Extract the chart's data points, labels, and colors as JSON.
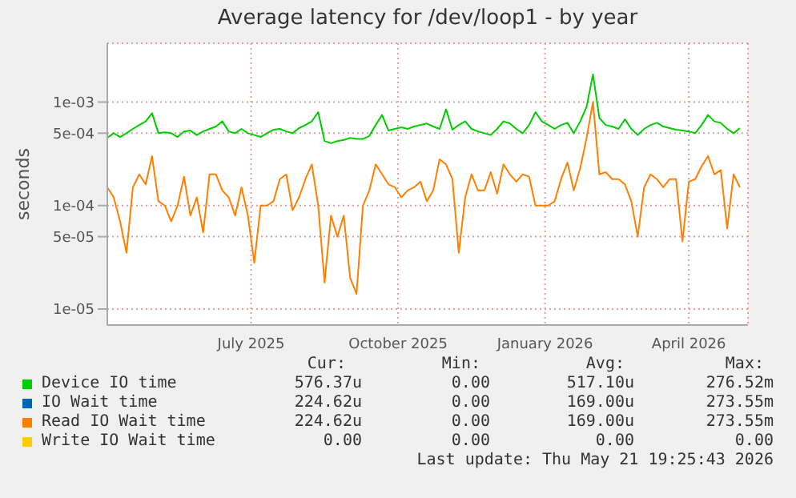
{
  "chart_data": {
    "type": "line",
    "title": "Average latency for /dev/loop1 - by year",
    "ylabel": "seconds",
    "log": "y",
    "grid": true,
    "legend": "bottom",
    "marker": "none",
    "line_style": "solid",
    "xlim": [
      "2025-04-17",
      "2026-05-23"
    ],
    "xticks": [
      {
        "value": "2025-07-16",
        "label": "July 2025"
      },
      {
        "value": "2025-10-16",
        "label": "October 2025"
      },
      {
        "value": "2026-01-16",
        "label": "January 2026"
      },
      {
        "value": "2026-04-16",
        "label": "April 2026"
      }
    ],
    "ylim": [
      7e-06,
      0.0037
    ],
    "yticks": [
      {
        "value": 1e-05,
        "label": "1e-05"
      },
      {
        "value": 5e-05,
        "label": "5e-05"
      },
      {
        "value": 0.0001,
        "label": "1e-04"
      },
      {
        "value": 0.0005,
        "label": "5e-04"
      },
      {
        "value": 0.001,
        "label": "1e-03"
      }
    ],
    "x": [
      "2025-04-17",
      "2025-04-21",
      "2025-04-25",
      "2025-04-29",
      "2025-05-03",
      "2025-05-07",
      "2025-05-11",
      "2025-05-15",
      "2025-05-19",
      "2025-05-23",
      "2025-05-27",
      "2025-05-31",
      "2025-06-04",
      "2025-06-08",
      "2025-06-12",
      "2025-06-16",
      "2025-06-20",
      "2025-06-24",
      "2025-06-28",
      "2025-07-02",
      "2025-07-06",
      "2025-07-10",
      "2025-07-14",
      "2025-07-18",
      "2025-07-22",
      "2025-07-26",
      "2025-07-30",
      "2025-08-03",
      "2025-08-07",
      "2025-08-11",
      "2025-08-15",
      "2025-08-19",
      "2025-08-23",
      "2025-08-27",
      "2025-08-31",
      "2025-09-04",
      "2025-09-08",
      "2025-09-12",
      "2025-09-16",
      "2025-09-20",
      "2025-09-24",
      "2025-09-28",
      "2025-10-02",
      "2025-10-06",
      "2025-10-10",
      "2025-10-14",
      "2025-10-18",
      "2025-10-22",
      "2025-10-26",
      "2025-10-30",
      "2025-11-03",
      "2025-11-07",
      "2025-11-11",
      "2025-11-15",
      "2025-11-19",
      "2025-11-23",
      "2025-11-27",
      "2025-12-01",
      "2025-12-05",
      "2025-12-09",
      "2025-12-13",
      "2025-12-17",
      "2025-12-21",
      "2025-12-25",
      "2025-12-29",
      "2026-01-02",
      "2026-01-06",
      "2026-01-10",
      "2026-01-14",
      "2026-01-18",
      "2026-01-22",
      "2026-01-26",
      "2026-01-30",
      "2026-02-03",
      "2026-02-07",
      "2026-02-11",
      "2026-02-15",
      "2026-02-19",
      "2026-02-23",
      "2026-02-27",
      "2026-03-03",
      "2026-03-07",
      "2026-03-11",
      "2026-03-15",
      "2026-03-19",
      "2026-03-23",
      "2026-03-27",
      "2026-03-31",
      "2026-04-04",
      "2026-04-08",
      "2026-04-12",
      "2026-04-16",
      "2026-04-20",
      "2026-04-24",
      "2026-04-28",
      "2026-05-02",
      "2026-05-06",
      "2026-05-10",
      "2026-05-14",
      "2026-05-18"
    ],
    "series": [
      {
        "name": "Device IO time",
        "color": "#00cc00",
        "values": [
          0.00045,
          0.0005,
          0.00046,
          0.0005,
          0.00055,
          0.0006,
          0.00065,
          0.00078,
          0.0005,
          0.00051,
          0.0005,
          0.00046,
          0.00052,
          0.00053,
          0.00048,
          0.00052,
          0.00055,
          0.00058,
          0.00065,
          0.00052,
          0.0005,
          0.00055,
          0.0005,
          0.00048,
          0.00046,
          0.0005,
          0.00054,
          0.00055,
          0.00052,
          0.0005,
          0.00056,
          0.0006,
          0.00065,
          0.0008,
          0.00042,
          0.0004,
          0.00042,
          0.00043,
          0.00045,
          0.00044,
          0.00044,
          0.00047,
          0.0006,
          0.00075,
          0.00053,
          0.00055,
          0.00057,
          0.00055,
          0.00058,
          0.0006,
          0.00062,
          0.00058,
          0.00055,
          0.00085,
          0.00054,
          0.0006,
          0.00065,
          0.00055,
          0.00052,
          0.0005,
          0.00048,
          0.00055,
          0.00065,
          0.00062,
          0.00055,
          0.0005,
          0.0006,
          0.0008,
          0.00065,
          0.0006,
          0.00055,
          0.0006,
          0.00063,
          0.0005,
          0.00065,
          0.0009,
          0.00185,
          0.0007,
          0.0006,
          0.00058,
          0.00055,
          0.00068,
          0.00055,
          0.00048,
          0.00055,
          0.0006,
          0.00063,
          0.00058,
          0.00056,
          0.00054,
          0.00053,
          0.00052,
          0.0005,
          0.0006,
          0.00075,
          0.00065,
          0.00063,
          0.00055,
          0.0005,
          0.00056
        ]
      },
      {
        "name": "IO Wait time",
        "color": "#0066b3",
        "values": [
          null,
          null,
          null,
          null,
          null,
          null,
          null,
          null,
          null,
          null,
          null,
          null,
          null,
          null,
          null,
          null,
          null,
          null,
          null,
          null,
          null,
          null,
          null,
          null,
          null,
          null,
          null,
          null,
          null,
          null,
          null,
          null,
          null,
          null,
          null,
          null,
          null,
          null,
          null,
          null,
          null,
          null,
          null,
          null,
          null,
          null,
          null,
          null,
          null,
          null,
          null,
          null,
          null,
          null,
          null,
          null,
          null,
          null,
          null,
          null,
          null,
          null,
          null,
          null,
          null,
          null,
          null,
          null,
          null,
          null,
          null,
          null,
          null,
          null,
          null,
          null,
          null,
          null,
          null,
          null,
          null,
          null,
          null,
          null,
          null,
          null,
          null,
          null,
          null,
          null,
          null,
          null,
          null,
          null,
          null,
          null,
          null,
          null,
          null,
          null
        ]
      },
      {
        "name": "Read IO Wait time",
        "color": "#ff8000",
        "values": [
          0.00015,
          0.00012,
          7e-05,
          3.5e-05,
          0.00015,
          0.0002,
          0.00016,
          0.0003,
          0.00011,
          0.0001,
          7e-05,
          0.0001,
          0.00019,
          8e-05,
          0.00012,
          5.5e-05,
          0.0002,
          0.0002,
          0.00014,
          0.00012,
          8e-05,
          0.00015,
          8e-05,
          2.8e-05,
          0.0001,
          0.0001,
          0.00011,
          0.00018,
          0.0002,
          9e-05,
          0.00012,
          0.00018,
          0.00025,
          0.0001,
          1.8e-05,
          8e-05,
          5e-05,
          8e-05,
          2e-05,
          1.4e-05,
          0.0001,
          0.00014,
          0.00025,
          0.0002,
          0.00016,
          0.00015,
          0.00012,
          0.00014,
          0.00015,
          0.00017,
          0.00011,
          0.00014,
          0.00028,
          0.00025,
          0.00018,
          3.5e-05,
          0.00012,
          0.0002,
          0.00014,
          0.00014,
          0.00021,
          0.00013,
          0.00025,
          0.0002,
          0.00017,
          0.0002,
          0.00019,
          0.0001,
          0.0001,
          0.0001,
          0.00011,
          0.00018,
          0.00026,
          0.00014,
          0.00023,
          0.00045,
          0.001,
          0.0002,
          0.00021,
          0.00018,
          0.00018,
          0.00016,
          0.00011,
          5e-05,
          0.00015,
          0.0002,
          0.00018,
          0.00015,
          0.00018,
          0.00018,
          4.5e-05,
          0.00017,
          0.00018,
          0.00024,
          0.0003,
          0.0002,
          0.00022,
          6e-05,
          0.0002,
          0.00015
        ]
      },
      {
        "name": "Write IO Wait time",
        "color": "#ffcc00",
        "values": [
          null,
          null,
          null,
          null,
          null,
          null,
          null,
          null,
          null,
          null,
          null,
          null,
          null,
          null,
          null,
          null,
          null,
          null,
          null,
          null,
          null,
          null,
          null,
          null,
          null,
          null,
          null,
          null,
          null,
          null,
          null,
          null,
          null,
          null,
          null,
          null,
          null,
          null,
          null,
          null,
          null,
          null,
          null,
          null,
          null,
          null,
          null,
          null,
          null,
          null,
          null,
          null,
          null,
          null,
          null,
          null,
          null,
          null,
          null,
          null,
          null,
          null,
          null,
          null,
          null,
          null,
          null,
          null,
          null,
          null,
          null,
          null,
          null,
          null,
          null,
          null,
          null,
          null,
          null,
          null,
          null,
          null,
          null,
          null,
          null,
          null,
          null,
          null,
          null,
          null,
          null,
          null,
          null,
          null,
          null,
          null,
          null,
          null,
          null,
          null
        ]
      }
    ],
    "annotations": [
      "Cur:",
      "Min:",
      "Avg:",
      "Max:",
      "576.37u",
      "0.00",
      "517.10u",
      "276.52m",
      "224.62u",
      "0.00",
      "169.00u",
      "273.55m",
      "224.62u",
      "0.00",
      "169.00u",
      "273.55m",
      "0.00",
      "0.00",
      "0.00",
      "0.00",
      "Last update: Thu May 21 19:25:43 2026"
    ]
  }
}
